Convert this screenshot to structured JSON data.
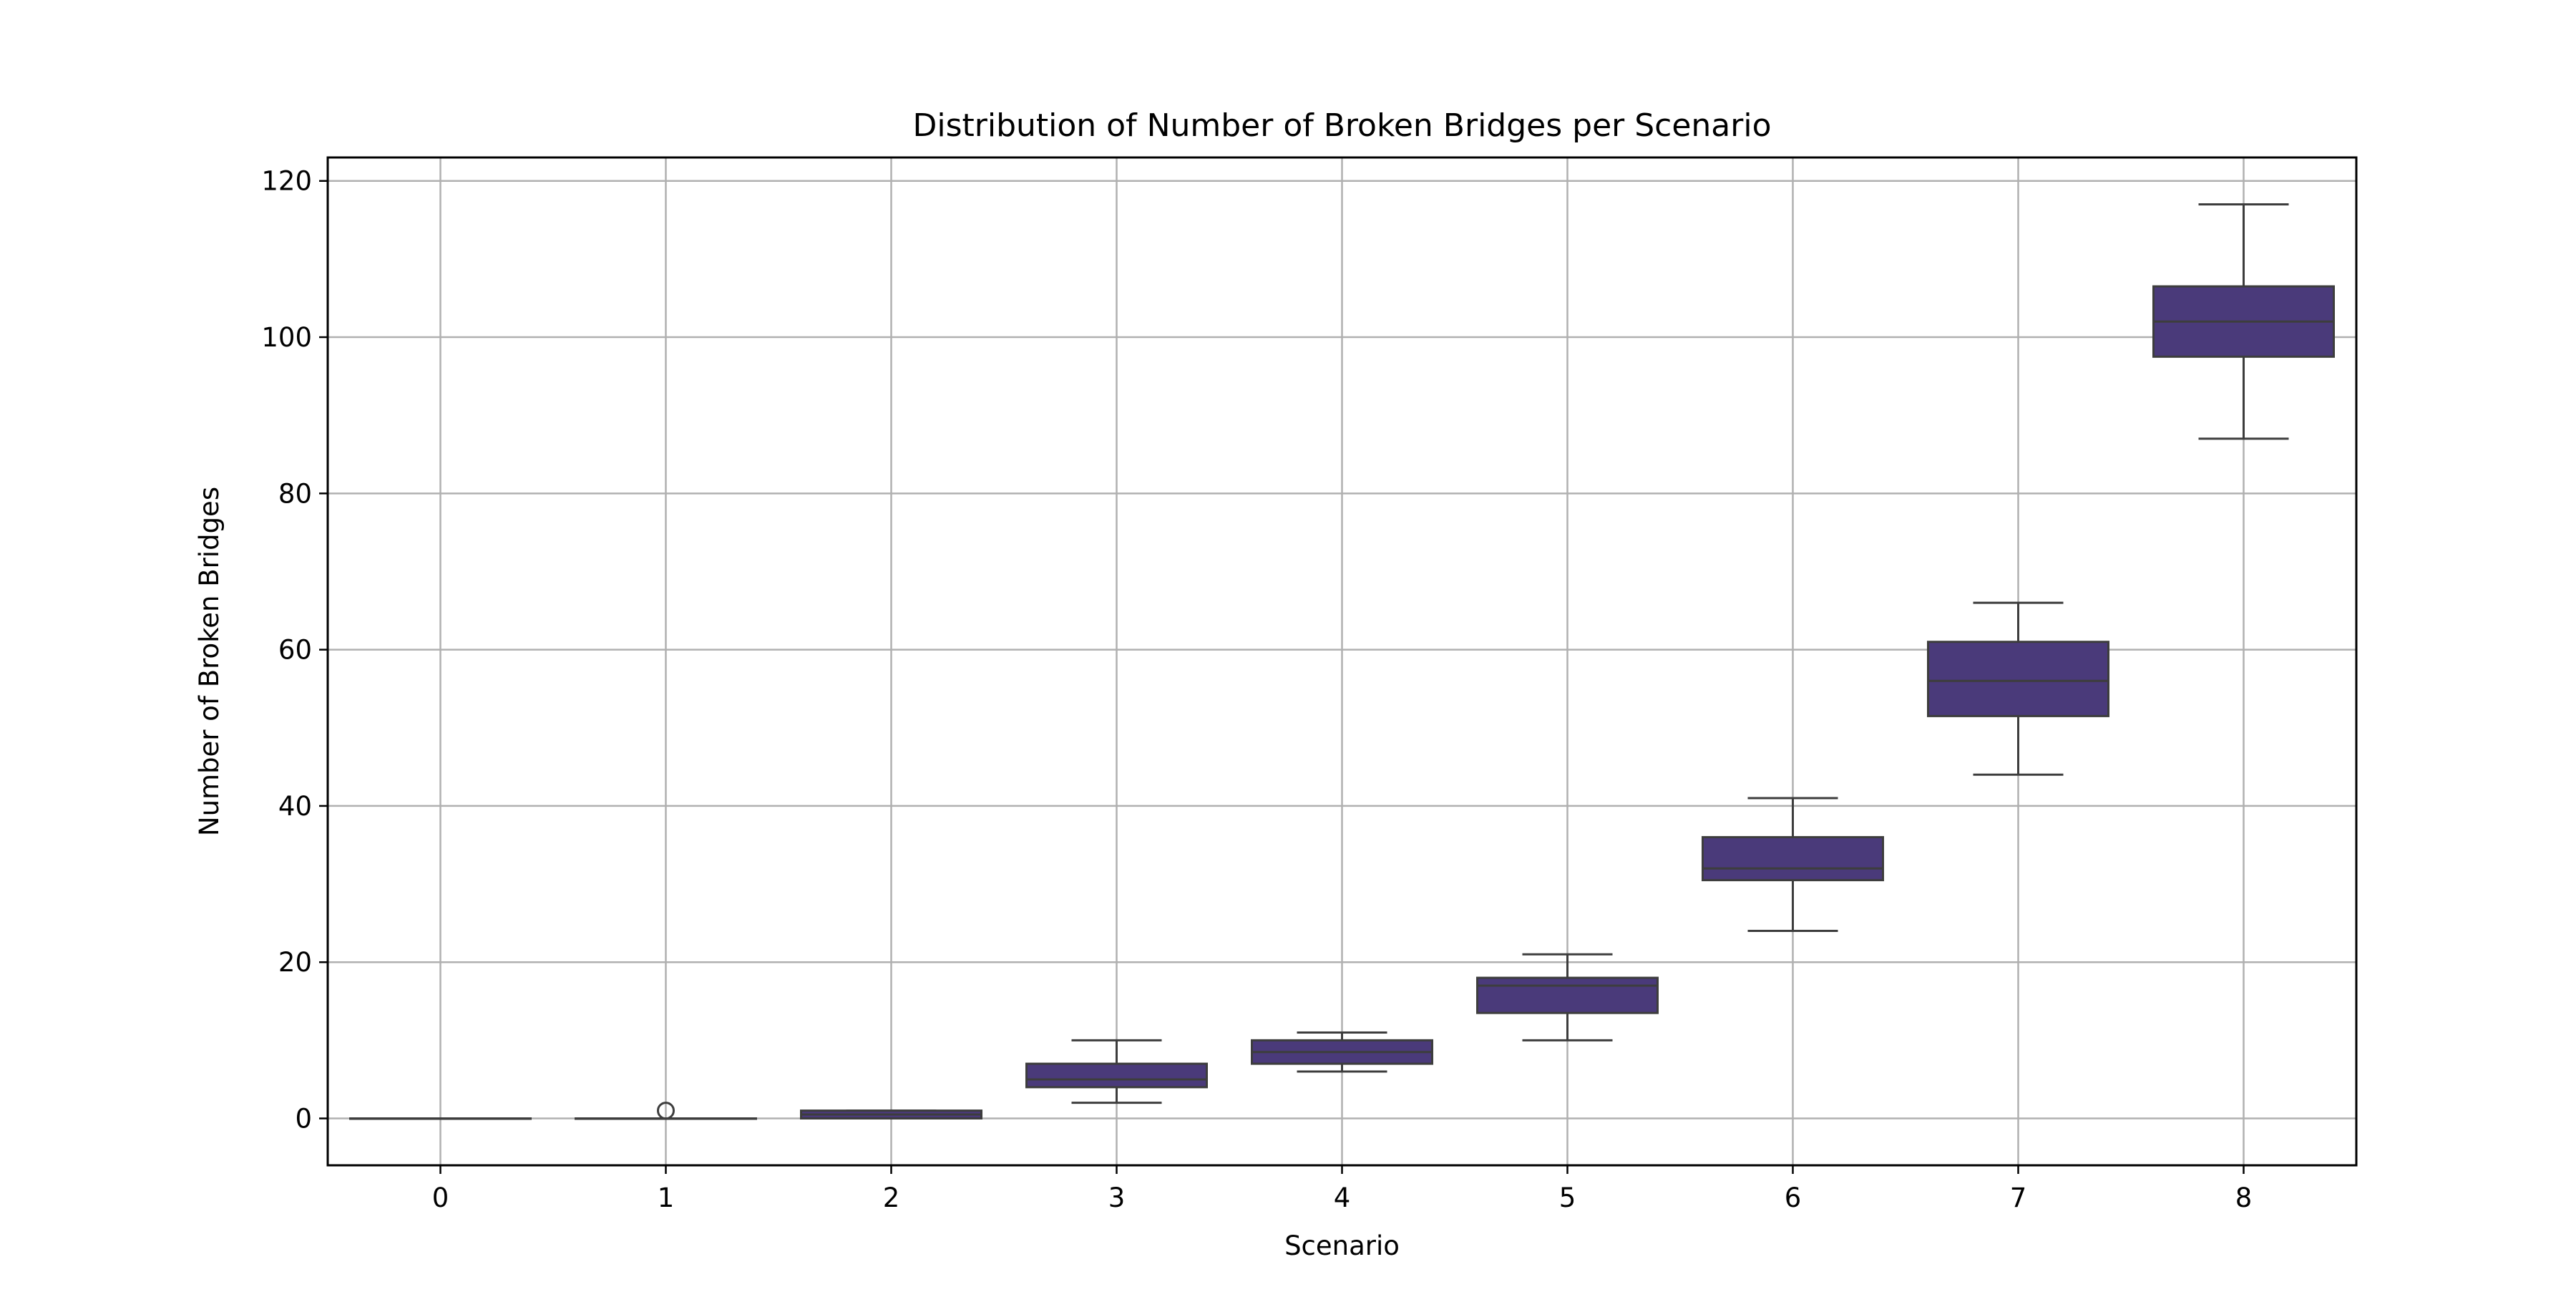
{
  "chart_data": {
    "type": "box",
    "title": "Distribution of Number of Broken Bridges per Scenario",
    "xlabel": "Scenario",
    "ylabel": "Number of Broken Bridges",
    "categories": [
      "0",
      "1",
      "2",
      "3",
      "4",
      "5",
      "6",
      "7",
      "8"
    ],
    "ylim": [
      -6,
      123
    ],
    "yticks": [
      0,
      20,
      40,
      60,
      80,
      100,
      120
    ],
    "ytick_labels": [
      "0",
      "20",
      "40",
      "60",
      "80",
      "100",
      "120"
    ],
    "grid": true,
    "box_color": "#4a3a7a",
    "boxes": [
      {
        "category": "0",
        "whisker_low": 0,
        "q1": 0,
        "median": 0,
        "q3": 0,
        "whisker_high": 0,
        "outliers": []
      },
      {
        "category": "1",
        "whisker_low": 0,
        "q1": 0,
        "median": 0,
        "q3": 0,
        "whisker_high": 0,
        "outliers": [
          1
        ]
      },
      {
        "category": "2",
        "whisker_low": 0,
        "q1": 0,
        "median": 0.5,
        "q3": 1,
        "whisker_high": 1,
        "outliers": []
      },
      {
        "category": "3",
        "whisker_low": 2,
        "q1": 4,
        "median": 5,
        "q3": 7,
        "whisker_high": 10,
        "outliers": []
      },
      {
        "category": "4",
        "whisker_low": 6,
        "q1": 7,
        "median": 8.5,
        "q3": 10,
        "whisker_high": 11,
        "outliers": []
      },
      {
        "category": "5",
        "whisker_low": 10,
        "q1": 13.5,
        "median": 17,
        "q3": 18,
        "whisker_high": 21,
        "outliers": []
      },
      {
        "category": "6",
        "whisker_low": 24,
        "q1": 30.5,
        "median": 32,
        "q3": 36,
        "whisker_high": 41,
        "outliers": []
      },
      {
        "category": "7",
        "whisker_low": 44,
        "q1": 51.5,
        "median": 56,
        "q3": 61,
        "whisker_high": 66,
        "outliers": []
      },
      {
        "category": "8",
        "whisker_low": 87,
        "q1": 97.5,
        "median": 102,
        "q3": 106.5,
        "whisker_high": 117,
        "outliers": []
      }
    ]
  }
}
